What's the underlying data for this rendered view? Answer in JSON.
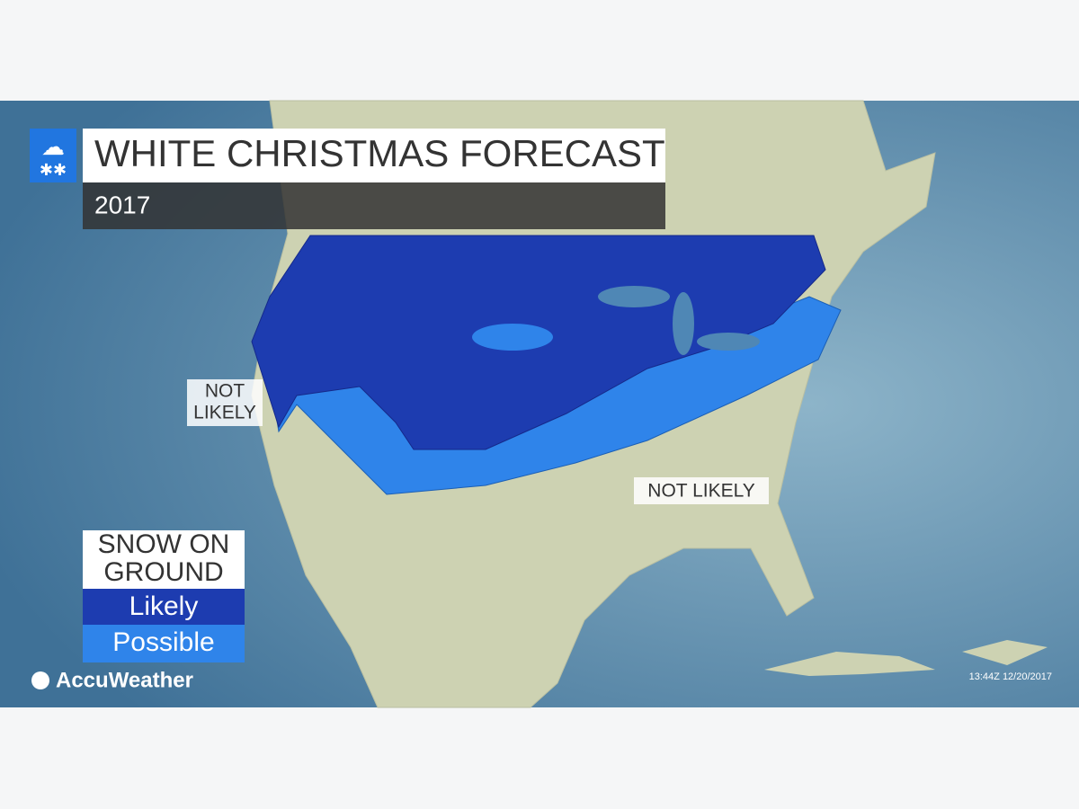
{
  "header": {
    "title": "WHITE CHRISTMAS FORECAST",
    "subtitle": "2017"
  },
  "map_labels": {
    "west": [
      "NOT",
      "LIKELY"
    ],
    "southeast": "NOT LIKELY"
  },
  "legend": {
    "title": [
      "SNOW ON",
      "GROUND"
    ],
    "items": [
      "Likely",
      "Possible"
    ]
  },
  "footer": {
    "brand": "AccuWeather",
    "timestamp": "13:44Z 12/20/2017"
  }
}
